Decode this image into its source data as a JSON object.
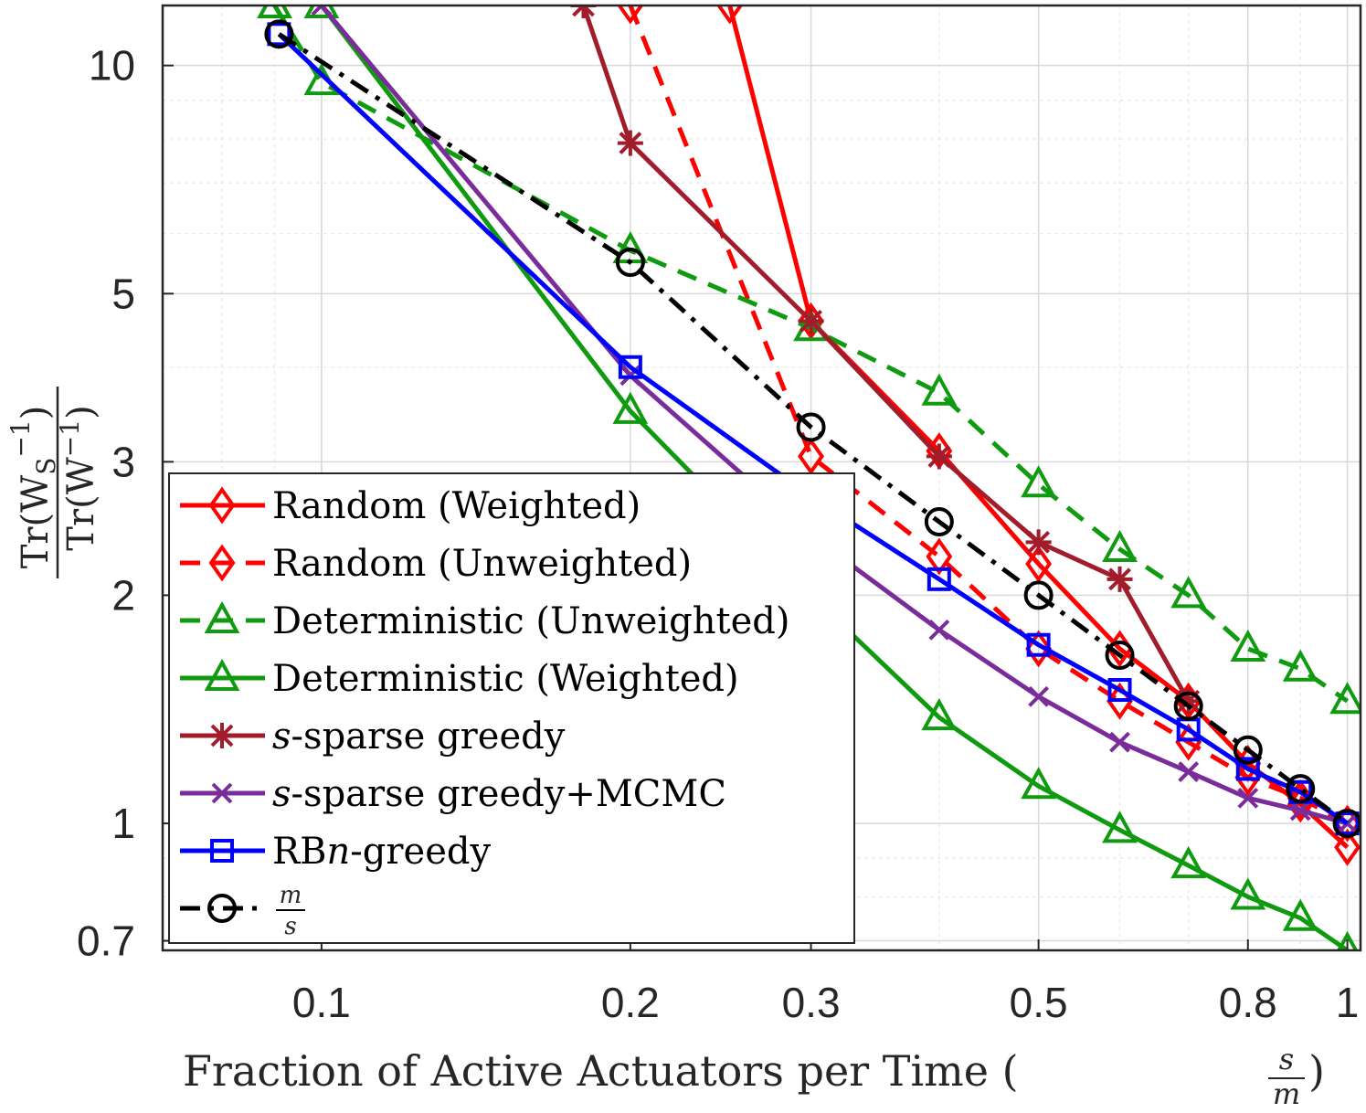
{
  "chart_data": {
    "type": "line",
    "x_scale": "log",
    "y_scale": "log",
    "xlim": [
      0.07,
      1.03
    ],
    "ylim": [
      0.68,
      12
    ],
    "grid": true,
    "minor_grid": true,
    "legend_position": "lower-left",
    "xlabel": {
      "text": "Fraction of Active Actuators per Time (",
      "frac_num": "s",
      "frac_den": "m",
      "close": ")"
    },
    "ylabel": {
      "num_prefix": "Tr(W",
      "num_sub": "S",
      "num_sup": "−1",
      "num_close": ")",
      "den_prefix": "Tr(W",
      "den_sup": "−1",
      "den_close": ")"
    },
    "x_ticks": [
      0.1,
      0.2,
      0.3,
      0.5,
      0.8,
      1
    ],
    "x_tick_labels": [
      "0.1",
      "0.2",
      "0.3",
      "0.5",
      "0.8",
      "1"
    ],
    "y_ticks": [
      0.7,
      1,
      2,
      3,
      5,
      10
    ],
    "y_tick_labels": [
      "0.7",
      "1",
      "2",
      "3",
      "5",
      "10"
    ],
    "series": [
      {
        "name": "Random (Weighted)",
        "color": "#ff0000",
        "dash": "solid",
        "marker": "diamond",
        "x": [
          0.25,
          0.3,
          0.4,
          0.5,
          0.6,
          0.7,
          0.8,
          0.9,
          1.0
        ],
        "y": [
          12,
          4.6,
          3.1,
          2.2,
          1.7,
          1.45,
          1.2,
          1.06,
          0.93
        ]
      },
      {
        "name": "Random (Unweighted)",
        "color": "#ff0000",
        "dash": "dashed",
        "marker": "diamond",
        "x": [
          0.2,
          0.3,
          0.4,
          0.5,
          0.6,
          0.7,
          0.8,
          0.9,
          1.0
        ],
        "y": [
          12,
          3.05,
          2.25,
          1.7,
          1.45,
          1.28,
          1.15,
          1.08,
          1.0
        ]
      },
      {
        "name": "Deterministic (Unweighted)",
        "color": "#0f9a0f",
        "dash": "dashed",
        "marker": "triangle",
        "x": [
          0.09,
          0.1,
          0.2,
          0.3,
          0.4,
          0.5,
          0.6,
          0.7,
          0.8,
          0.9,
          1.0
        ],
        "y": [
          12,
          9.5,
          5.7,
          4.5,
          3.7,
          2.8,
          2.3,
          2.0,
          1.7,
          1.6,
          1.45
        ]
      },
      {
        "name": "Deterministic (Weighted)",
        "color": "#0f9a0f",
        "dash": "solid",
        "marker": "triangle",
        "x": [
          0.1,
          0.2,
          0.3,
          0.4,
          0.5,
          0.6,
          0.7,
          0.8,
          0.9,
          1.0
        ],
        "y": [
          12,
          3.5,
          2.0,
          1.38,
          1.12,
          0.98,
          0.88,
          0.8,
          0.75,
          0.68
        ]
      },
      {
        "name": "s-sparse greedy",
        "name_italic": "s",
        "name_rest": "-sparse greedy",
        "color": "#a21d2b",
        "dash": "solid",
        "marker": "asterisk",
        "x": [
          0.18,
          0.2,
          0.3,
          0.4,
          0.5,
          0.6,
          0.7
        ],
        "y": [
          12,
          7.9,
          4.6,
          3.05,
          2.35,
          2.1,
          1.45
        ]
      },
      {
        "name": "s-sparse greedy+MCMC",
        "name_italic": "s",
        "name_rest": "-sparse greedy+MCMC",
        "color": "#7a2d9a",
        "dash": "solid",
        "marker": "x",
        "x": [
          0.1,
          0.2,
          0.3,
          0.4,
          0.5,
          0.6,
          0.7,
          0.8,
          0.9,
          1.0
        ],
        "y": [
          12,
          3.9,
          2.4,
          1.8,
          1.47,
          1.28,
          1.17,
          1.08,
          1.04,
          1.0
        ]
      },
      {
        "name": "RBn-greedy",
        "name_pre": "RB",
        "name_italic": "n",
        "name_rest": "-greedy",
        "color": "#0000ff",
        "dash": "solid",
        "marker": "square",
        "x": [
          0.0909,
          0.2,
          0.3,
          0.4,
          0.5,
          0.6,
          0.7,
          0.8,
          0.9,
          1.0
        ],
        "y": [
          11,
          4.0,
          2.7,
          2.1,
          1.72,
          1.5,
          1.33,
          1.18,
          1.1,
          1.0
        ]
      },
      {
        "name_num": "m",
        "name_den": "s",
        "color": "#000000",
        "dash": "dashdot",
        "marker": "circle",
        "x": [
          0.0909,
          0.2,
          0.3,
          0.4,
          0.5,
          0.6,
          0.7,
          0.8,
          0.9,
          1.0
        ],
        "y": [
          11,
          5.5,
          3.333,
          2.5,
          2.0,
          1.667,
          1.4286,
          1.25,
          1.111,
          1.0
        ]
      }
    ]
  }
}
